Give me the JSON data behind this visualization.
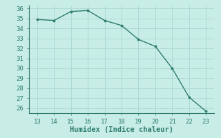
{
  "x": [
    13,
    14,
    15,
    16,
    17,
    18,
    19,
    20,
    21,
    22,
    23
  ],
  "y": [
    34.9,
    34.8,
    35.7,
    35.8,
    34.8,
    34.3,
    32.9,
    32.2,
    30.0,
    27.1,
    25.7
  ],
  "xlabel": "Humidex (Indice chaleur)",
  "ylim_min": 25.5,
  "ylim_max": 36.3,
  "xlim_min": 12.5,
  "xlim_max": 23.5,
  "yticks": [
    26,
    27,
    28,
    29,
    30,
    31,
    32,
    33,
    34,
    35,
    36
  ],
  "xticks": [
    13,
    14,
    15,
    16,
    17,
    18,
    19,
    20,
    21,
    22,
    23
  ],
  "line_color": "#2d7d6e",
  "bg_color": "#c8ece6",
  "grid_color": "#a8d8d0",
  "spine_color": "#2d7d6e",
  "tick_color": "#2d7d6e",
  "label_fontsize": 6.5,
  "xlabel_fontsize": 7.5
}
